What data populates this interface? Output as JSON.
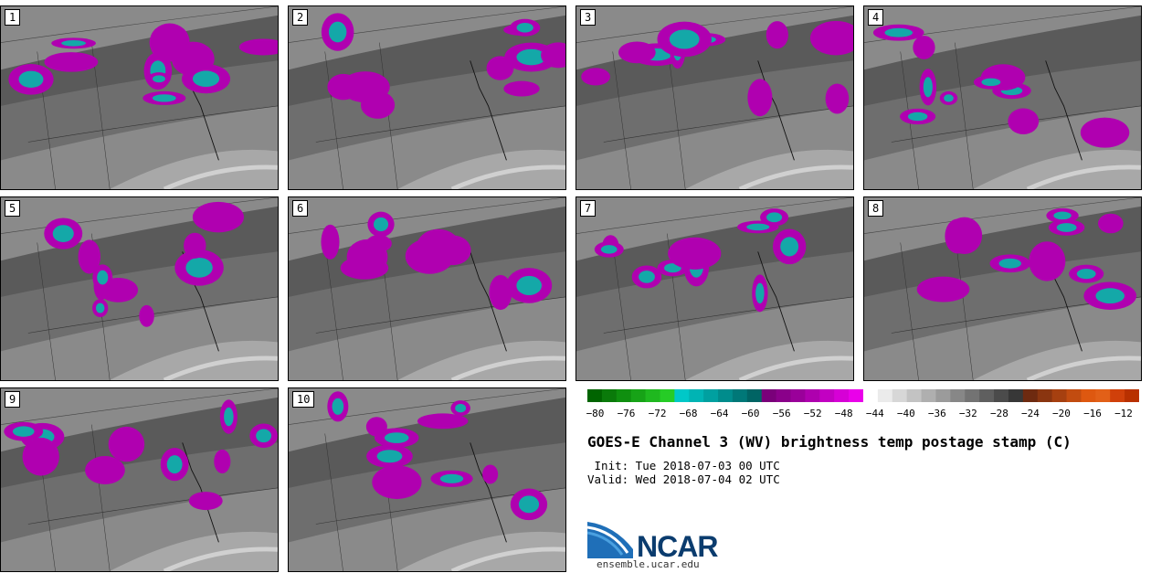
{
  "panels": [
    {
      "number": "1"
    },
    {
      "number": "2"
    },
    {
      "number": "3"
    },
    {
      "number": "4"
    },
    {
      "number": "5"
    },
    {
      "number": "6"
    },
    {
      "number": "7"
    },
    {
      "number": "8"
    },
    {
      "number": "9"
    },
    {
      "number": "10"
    }
  ],
  "colorbar": {
    "ticks": [
      "−80",
      "−76",
      "−72",
      "−68",
      "−64",
      "−60",
      "−56",
      "−52",
      "−48",
      "−44",
      "−40",
      "−36",
      "−32",
      "−28",
      "−24",
      "−20",
      "−16",
      "−12"
    ],
    "min": -81,
    "max": -10,
    "colors": [
      "#006400",
      "#0a7a0a",
      "#0f8f0f",
      "#17a317",
      "#1fb81f",
      "#26cc26",
      "#00c8c8",
      "#00b4b4",
      "#00a0a0",
      "#008c8c",
      "#007878",
      "#006464",
      "#7a007a",
      "#8a008a",
      "#9a009a",
      "#ae00ae",
      "#c200c2",
      "#d600d6",
      "#ea00ea",
      "#ffffff",
      "#ebebeb",
      "#d7d7d7",
      "#c3c3c3",
      "#afafaf",
      "#9b9b9b",
      "#878787",
      "#737373",
      "#5f5f5f",
      "#4b4b4b",
      "#373737",
      "#6e2a10",
      "#8a3510",
      "#a64010",
      "#c24c10",
      "#de5810",
      "#e26018",
      "#d0400a",
      "#b83000"
    ]
  },
  "title": "GOES-E Channel 3 (WV) brightness temp postage stamp (C)",
  "init_label": " Init: Tue 2018-07-03 00 UTC",
  "valid_label": "Valid: Wed 2018-07-04 02 UTC",
  "logo": {
    "name": "NCAR",
    "url": "ensemble.ucar.edu"
  }
}
